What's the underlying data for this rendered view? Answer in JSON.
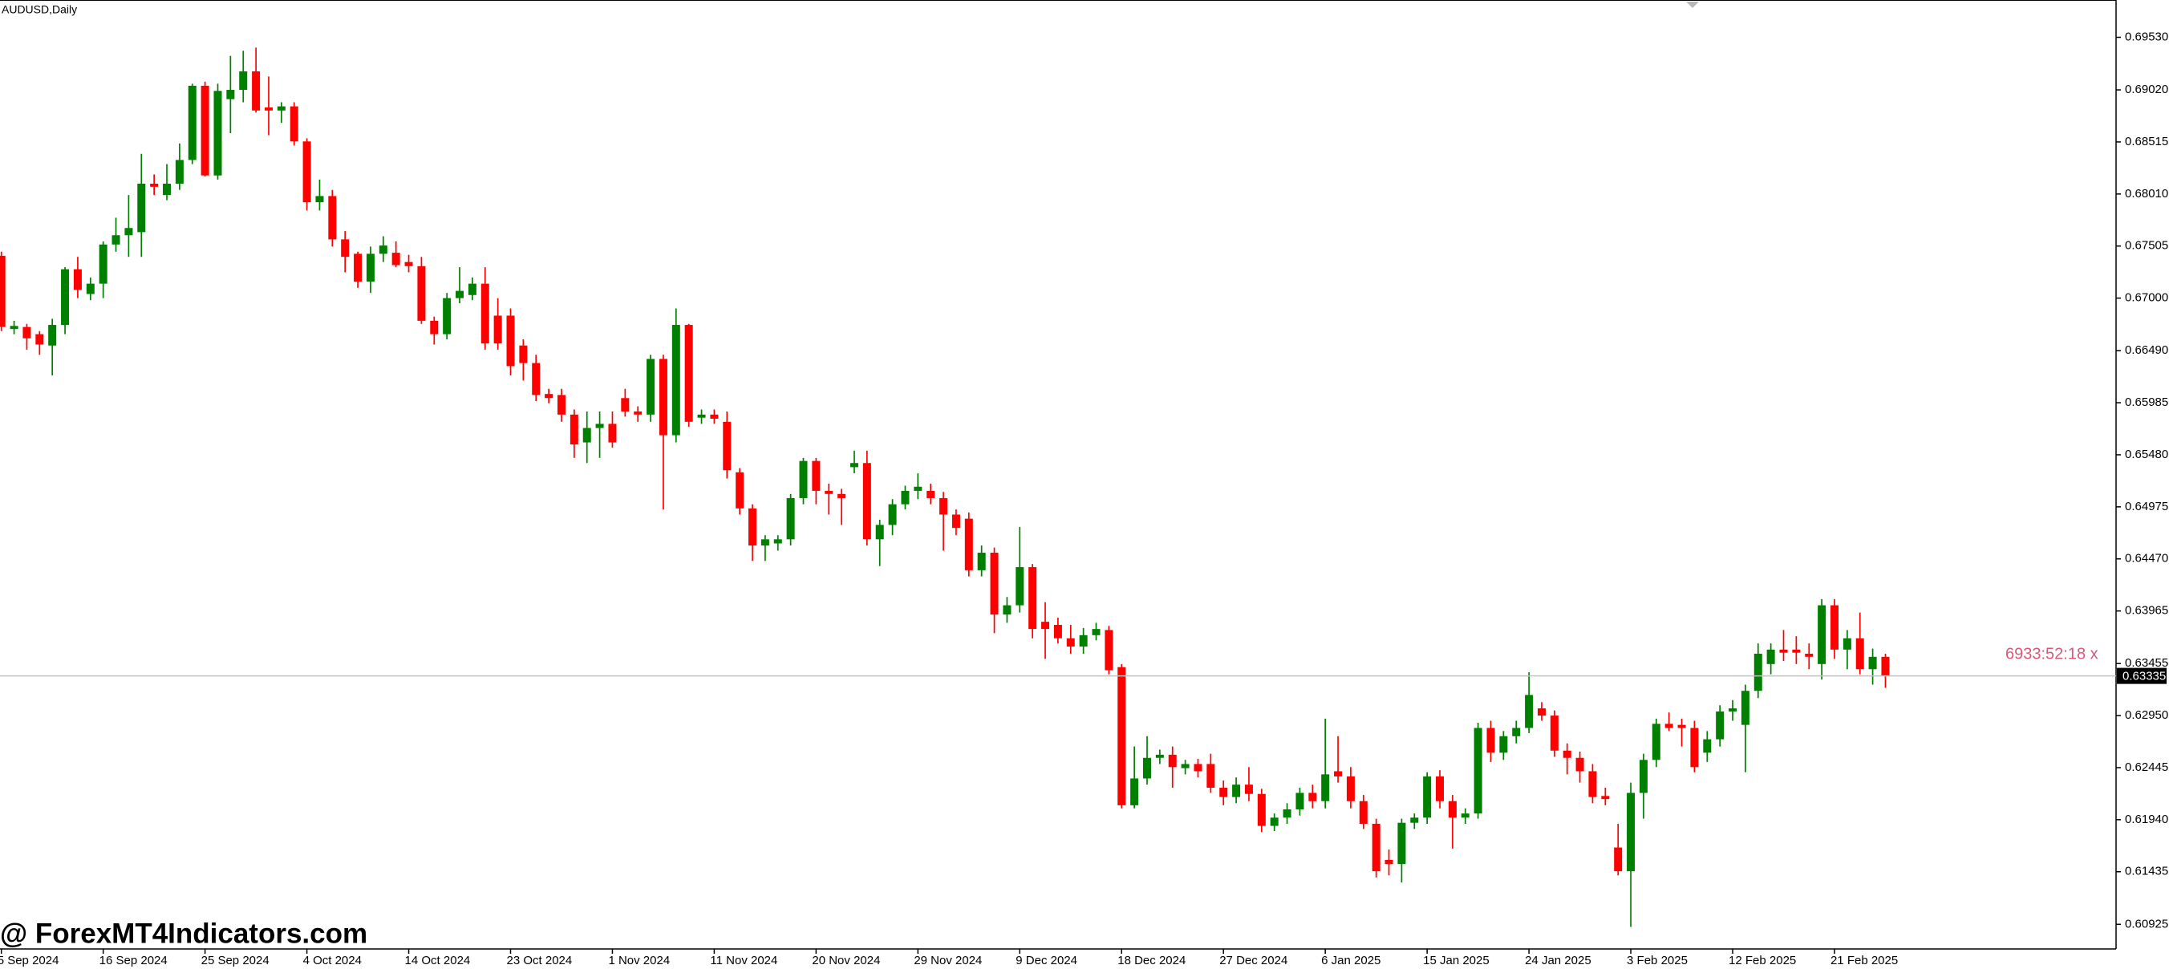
{
  "chart_data": {
    "type": "candlestick",
    "title": "AUDUSD,Daily",
    "watermark": "@ ForexMT4Indicators.com",
    "timer": "6933:52:18 x",
    "up_color": "#008000",
    "down_color": "#ff0000",
    "grid": false,
    "ylim": [
      0.60686,
      0.69892
    ],
    "yticks": [
      {
        "value": 0.6953,
        "label": "0.69530"
      },
      {
        "value": 0.6902,
        "label": "0.69020"
      },
      {
        "value": 0.68515,
        "label": "0.68515"
      },
      {
        "value": 0.6801,
        "label": "0.68010"
      },
      {
        "value": 0.67505,
        "label": "0.67505"
      },
      {
        "value": 0.67,
        "label": "0.67000"
      },
      {
        "value": 0.6649,
        "label": "0.66490"
      },
      {
        "value": 0.65985,
        "label": "0.65985"
      },
      {
        "value": 0.6548,
        "label": "0.65480"
      },
      {
        "value": 0.64975,
        "label": "0.64975"
      },
      {
        "value": 0.6447,
        "label": "0.64470"
      },
      {
        "value": 0.63965,
        "label": "0.63965"
      },
      {
        "value": 0.63455,
        "label": "0.63455"
      },
      {
        "value": 0.6295,
        "label": "0.62950"
      },
      {
        "value": 0.62445,
        "label": "0.62445"
      },
      {
        "value": 0.6194,
        "label": "0.61940"
      },
      {
        "value": 0.61435,
        "label": "0.61435"
      },
      {
        "value": 0.60925,
        "label": "0.60925"
      }
    ],
    "price_line": {
      "value": 0.63335,
      "label": "0.63335"
    },
    "categories": [
      "5 Sep 2024",
      null,
      null,
      null,
      null,
      null,
      null,
      null,
      "16 Sep 2024",
      null,
      null,
      null,
      null,
      null,
      null,
      null,
      "25 Sep 2024",
      null,
      null,
      null,
      null,
      null,
      null,
      null,
      "4 Oct 2024",
      null,
      null,
      null,
      null,
      null,
      null,
      null,
      "14 Oct 2024",
      null,
      null,
      null,
      null,
      null,
      null,
      null,
      "23 Oct 2024",
      null,
      null,
      null,
      null,
      null,
      null,
      null,
      "1 Nov 2024",
      null,
      null,
      null,
      null,
      null,
      null,
      null,
      "11 Nov 2024",
      null,
      null,
      null,
      null,
      null,
      null,
      null,
      "20 Nov 2024",
      null,
      null,
      null,
      null,
      null,
      null,
      null,
      "29 Nov 2024",
      null,
      null,
      null,
      null,
      null,
      null,
      null,
      "9 Dec 2024",
      null,
      null,
      null,
      null,
      null,
      null,
      null,
      "18 Dec 2024",
      null,
      null,
      null,
      null,
      null,
      null,
      null,
      "27 Dec 2024",
      null,
      null,
      null,
      null,
      null,
      null,
      null,
      "6 Jan 2025",
      null,
      null,
      null,
      null,
      null,
      null,
      null,
      "15 Jan 2025",
      null,
      null,
      null,
      null,
      null,
      null,
      null,
      "24 Jan 2025",
      null,
      null,
      null,
      null,
      null,
      null,
      null,
      "3 Feb 2025",
      null,
      null,
      null,
      null,
      null,
      null,
      null,
      "12 Feb 2025",
      null,
      null,
      null,
      null,
      null,
      null,
      null,
      "21 Feb 2025",
      null,
      null,
      null,
      null
    ],
    "open": [
      0.6741,
      0.667,
      0.6672,
      0.6665,
      0.6654,
      0.6674,
      0.6728,
      0.6704,
      0.6714,
      0.6752,
      0.6761,
      0.6764,
      0.6811,
      0.68,
      0.6811,
      0.6834,
      0.6906,
      0.6819,
      0.6893,
      0.6902,
      0.692,
      0.6885,
      0.6882,
      0.6886,
      0.6852,
      0.6793,
      0.6799,
      0.6757,
      0.6743,
      0.6716,
      0.6743,
      0.6744,
      0.6735,
      0.6731,
      0.6678,
      0.6665,
      0.67,
      0.6703,
      0.6714,
      0.6683,
      0.6683,
      0.6654,
      0.6637,
      0.6607,
      0.6606,
      0.6587,
      0.656,
      0.6574,
      0.6578,
      0.6603,
      0.659,
      0.6587,
      0.6641,
      0.6567,
      0.6674,
      0.6584,
      0.6587,
      0.658,
      0.6531,
      0.6496,
      0.646,
      0.6462,
      0.6466,
      0.6506,
      0.6542,
      0.6513,
      0.651,
      0.6536,
      0.654,
      0.6466,
      0.648,
      0.65,
      0.6513,
      0.6513,
      0.6506,
      0.649,
      0.6486,
      0.6436,
      0.6453,
      0.6393,
      0.6402,
      0.6439,
      0.6386,
      0.6383,
      0.637,
      0.6362,
      0.6373,
      0.6378,
      0.6342,
      0.6208,
      0.6234,
      0.6254,
      0.6257,
      0.6244,
      0.6248,
      0.6248,
      0.6225,
      0.6216,
      0.6228,
      0.6219,
      0.6188,
      0.6196,
      0.6204,
      0.622,
      0.6212,
      0.6241,
      0.6236,
      0.6212,
      0.619,
      0.6155,
      0.6151,
      0.6191,
      0.6196,
      0.6236,
      0.6212,
      0.6196,
      0.62,
      0.6283,
      0.6259,
      0.6275,
      0.6283,
      0.6302,
      0.6295,
      0.6261,
      0.6254,
      0.6241,
      0.6217,
      0.6167,
      0.6144,
      0.622,
      0.6252,
      0.6287,
      0.6286,
      0.6283,
      0.6259,
      0.6272,
      0.6299,
      0.6286,
      0.6319,
      0.6345,
      0.6359,
      0.6359,
      0.6355,
      0.6345,
      0.6402,
      0.6359,
      0.637,
      0.634,
      0.6352
    ],
    "high": [
      0.6745,
      0.6678,
      0.6675,
      0.6668,
      0.668,
      0.673,
      0.674,
      0.672,
      0.6755,
      0.6778,
      0.68,
      0.684,
      0.682,
      0.683,
      0.685,
      0.6908,
      0.691,
      0.6908,
      0.6935,
      0.694,
      0.6943,
      0.6915,
      0.689,
      0.689,
      0.6855,
      0.6815,
      0.6805,
      0.6765,
      0.6745,
      0.675,
      0.676,
      0.6755,
      0.6742,
      0.674,
      0.6682,
      0.6705,
      0.673,
      0.672,
      0.673,
      0.67,
      0.669,
      0.666,
      0.6645,
      0.6612,
      0.6612,
      0.6592,
      0.659,
      0.659,
      0.659,
      0.6612,
      0.6595,
      0.6645,
      0.6645,
      0.669,
      0.6675,
      0.6592,
      0.6592,
      0.659,
      0.6535,
      0.65,
      0.647,
      0.647,
      0.651,
      0.6545,
      0.6545,
      0.652,
      0.6515,
      0.6552,
      0.6552,
      0.6485,
      0.6505,
      0.6518,
      0.653,
      0.652,
      0.6512,
      0.6495,
      0.6492,
      0.646,
      0.6458,
      0.641,
      0.6478,
      0.6442,
      0.6405,
      0.639,
      0.6383,
      0.638,
      0.6385,
      0.6382,
      0.6345,
      0.6265,
      0.6275,
      0.6262,
      0.6265,
      0.6252,
      0.6253,
      0.6258,
      0.6232,
      0.6235,
      0.6245,
      0.6224,
      0.62,
      0.621,
      0.6225,
      0.6228,
      0.6292,
      0.6275,
      0.6245,
      0.6218,
      0.6195,
      0.6165,
      0.6195,
      0.62,
      0.624,
      0.6242,
      0.6218,
      0.6205,
      0.6288,
      0.629,
      0.628,
      0.629,
      0.6337,
      0.6308,
      0.63,
      0.6268,
      0.626,
      0.6248,
      0.6225,
      0.619,
      0.623,
      0.6258,
      0.6292,
      0.6298,
      0.6292,
      0.629,
      0.628,
      0.6305,
      0.631,
      0.6325,
      0.6365,
      0.6365,
      0.6378,
      0.6372,
      0.6365,
      0.6408,
      0.6408,
      0.6378,
      0.6395,
      0.636,
      0.6355
    ],
    "low": [
      0.6668,
      0.6665,
      0.665,
      0.6645,
      0.6625,
      0.6665,
      0.67,
      0.6698,
      0.67,
      0.6745,
      0.674,
      0.674,
      0.68,
      0.6795,
      0.6805,
      0.683,
      0.6818,
      0.6815,
      0.686,
      0.689,
      0.688,
      0.6858,
      0.687,
      0.6848,
      0.6785,
      0.6785,
      0.675,
      0.6725,
      0.671,
      0.6705,
      0.6735,
      0.673,
      0.6725,
      0.6675,
      0.6655,
      0.666,
      0.6695,
      0.6698,
      0.665,
      0.665,
      0.6625,
      0.662,
      0.66,
      0.6598,
      0.658,
      0.6545,
      0.654,
      0.6545,
      0.6555,
      0.6585,
      0.658,
      0.658,
      0.6495,
      0.656,
      0.6575,
      0.6578,
      0.6578,
      0.6525,
      0.649,
      0.6445,
      0.6445,
      0.6455,
      0.646,
      0.65,
      0.65,
      0.649,
      0.648,
      0.653,
      0.646,
      0.644,
      0.647,
      0.6495,
      0.6505,
      0.65,
      0.6455,
      0.647,
      0.643,
      0.643,
      0.6375,
      0.6385,
      0.6395,
      0.637,
      0.635,
      0.6365,
      0.6355,
      0.6355,
      0.6368,
      0.6335,
      0.6205,
      0.6205,
      0.6228,
      0.6248,
      0.6225,
      0.6238,
      0.6235,
      0.622,
      0.6208,
      0.621,
      0.6212,
      0.6182,
      0.6183,
      0.619,
      0.6198,
      0.6205,
      0.6205,
      0.623,
      0.6205,
      0.6185,
      0.6138,
      0.614,
      0.6133,
      0.6185,
      0.619,
      0.6205,
      0.6166,
      0.619,
      0.6195,
      0.625,
      0.6252,
      0.6268,
      0.6278,
      0.629,
      0.6255,
      0.6238,
      0.623,
      0.621,
      0.6208,
      0.614,
      0.609,
      0.6195,
      0.6245,
      0.628,
      0.6265,
      0.624,
      0.625,
      0.6265,
      0.629,
      0.624,
      0.6312,
      0.6335,
      0.6348,
      0.6345,
      0.634,
      0.633,
      0.635,
      0.634,
      0.6335,
      0.6325,
      0.6322
    ],
    "close": [
      0.6672,
      0.6673,
      0.6661,
      0.6655,
      0.6674,
      0.6728,
      0.6708,
      0.6714,
      0.6752,
      0.6761,
      0.6768,
      0.6811,
      0.6808,
      0.6811,
      0.6834,
      0.6906,
      0.6819,
      0.6901,
      0.6902,
      0.692,
      0.6882,
      0.6882,
      0.6886,
      0.6852,
      0.6793,
      0.6799,
      0.6757,
      0.674,
      0.6716,
      0.6743,
      0.6751,
      0.6732,
      0.6731,
      0.6678,
      0.6665,
      0.67,
      0.6707,
      0.6714,
      0.6656,
      0.6656,
      0.6634,
      0.6637,
      0.6606,
      0.6603,
      0.6587,
      0.6558,
      0.6574,
      0.6578,
      0.656,
      0.659,
      0.6587,
      0.6641,
      0.6567,
      0.6674,
      0.658,
      0.6587,
      0.6583,
      0.6533,
      0.6496,
      0.646,
      0.6466,
      0.6466,
      0.6506,
      0.6542,
      0.6513,
      0.651,
      0.6506,
      0.654,
      0.6466,
      0.648,
      0.65,
      0.6513,
      0.6517,
      0.6506,
      0.649,
      0.6477,
      0.6436,
      0.6453,
      0.6393,
      0.6402,
      0.6439,
      0.6379,
      0.6379,
      0.637,
      0.6362,
      0.6373,
      0.6379,
      0.6339,
      0.6208,
      0.6234,
      0.6254,
      0.6257,
      0.6245,
      0.6248,
      0.6241,
      0.6225,
      0.6216,
      0.6228,
      0.6219,
      0.6188,
      0.6196,
      0.6204,
      0.622,
      0.6212,
      0.6238,
      0.6236,
      0.6212,
      0.619,
      0.6144,
      0.6151,
      0.6191,
      0.6196,
      0.6236,
      0.6212,
      0.6196,
      0.62,
      0.6283,
      0.6259,
      0.6275,
      0.6283,
      0.6315,
      0.6295,
      0.6261,
      0.6254,
      0.6241,
      0.6216,
      0.6214,
      0.6144,
      0.622,
      0.6252,
      0.6287,
      0.6283,
      0.6283,
      0.6245,
      0.6272,
      0.6299,
      0.6302,
      0.6319,
      0.6355,
      0.6359,
      0.6356,
      0.6356,
      0.6352,
      0.6402,
      0.6359,
      0.637,
      0.634,
      0.6352,
      0.6334
    ]
  }
}
